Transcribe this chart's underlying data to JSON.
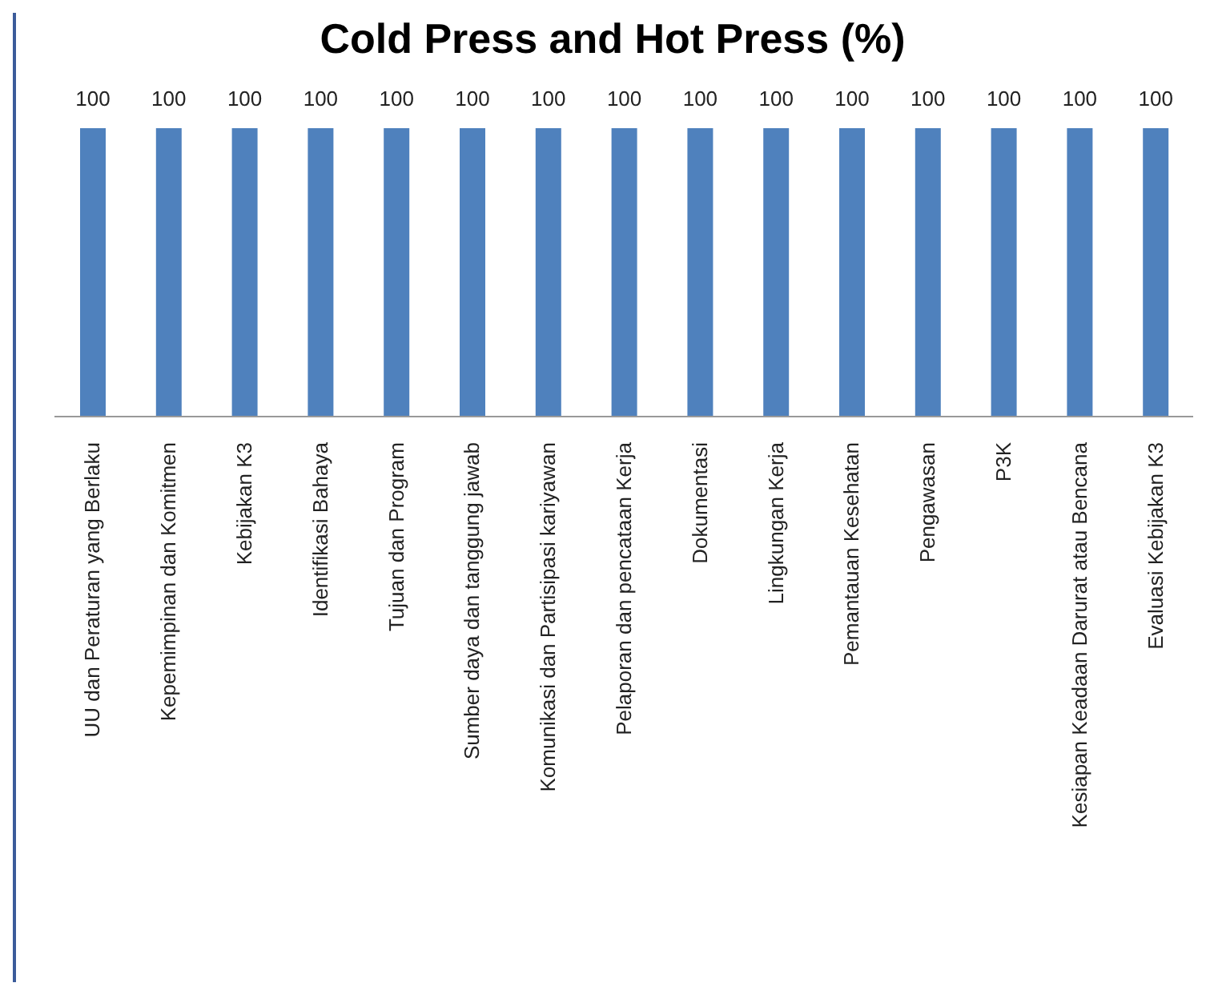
{
  "chart_data": {
    "type": "bar",
    "title": "Cold Press and Hot Press (%)",
    "categories": [
      "UU dan Peraturan yang Berlaku",
      "Kepemimpinan dan Komitmen",
      "Kebijakan K3",
      "Identifikasi Bahaya",
      "Tujuan dan Program",
      "Sumber daya dan tanggung jawab",
      "Komunikasi dan Partisipasi kariyawan",
      "Pelaporan dan pencataan Kerja",
      "Dokumentasi",
      "Lingkungan Kerja",
      "Pemantauan Kesehatan",
      "Pengawasan",
      "P3K",
      "Kesiapan Keadaan Darurat atau Bencana",
      "Evaluasi Kebijakan K3"
    ],
    "values": [
      100,
      100,
      100,
      100,
      100,
      100,
      100,
      100,
      100,
      100,
      100,
      100,
      100,
      100,
      100
    ],
    "color": "#4f81bd",
    "data_labels": true,
    "grid": false,
    "legend": false
  }
}
